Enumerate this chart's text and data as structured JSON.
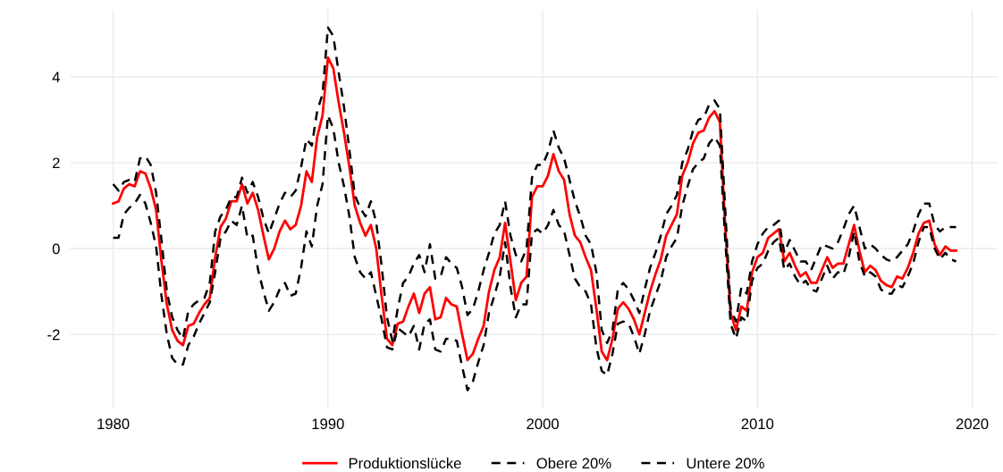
{
  "chart_data": {
    "type": "line",
    "x": [
      1980.0,
      1980.25,
      1980.5,
      1980.75,
      1981.0,
      1981.25,
      1981.5,
      1981.75,
      1982.0,
      1982.25,
      1982.5,
      1982.75,
      1983.0,
      1983.25,
      1983.5,
      1983.75,
      1984.0,
      1984.25,
      1984.5,
      1984.75,
      1985.0,
      1985.25,
      1985.5,
      1985.75,
      1986.0,
      1986.25,
      1986.5,
      1986.75,
      1987.0,
      1987.25,
      1987.5,
      1987.75,
      1988.0,
      1988.25,
      1988.5,
      1988.75,
      1989.0,
      1989.25,
      1989.5,
      1989.75,
      1990.0,
      1990.25,
      1990.5,
      1990.75,
      1991.0,
      1991.25,
      1991.5,
      1991.75,
      1992.0,
      1992.25,
      1992.5,
      1992.75,
      1993.0,
      1993.25,
      1993.5,
      1993.75,
      1994.0,
      1994.25,
      1994.5,
      1994.75,
      1995.0,
      1995.25,
      1995.5,
      1995.75,
      1996.0,
      1996.25,
      1996.5,
      1996.75,
      1997.0,
      1997.25,
      1997.5,
      1997.75,
      1998.0,
      1998.25,
      1998.5,
      1998.75,
      1999.0,
      1999.25,
      1999.5,
      1999.75,
      2000.0,
      2000.25,
      2000.5,
      2000.75,
      2001.0,
      2001.25,
      2001.5,
      2001.75,
      2002.0,
      2002.25,
      2002.5,
      2002.75,
      2003.0,
      2003.25,
      2003.5,
      2003.75,
      2004.0,
      2004.25,
      2004.5,
      2004.75,
      2005.0,
      2005.25,
      2005.5,
      2005.75,
      2006.0,
      2006.25,
      2006.5,
      2006.75,
      2007.0,
      2007.25,
      2007.5,
      2007.75,
      2008.0,
      2008.25,
      2008.5,
      2008.75,
      2009.0,
      2009.25,
      2009.5,
      2009.75,
      2010.0,
      2010.25,
      2010.5,
      2010.75,
      2011.0,
      2011.25,
      2011.5,
      2011.75,
      2012.0,
      2012.25,
      2012.5,
      2012.75,
      2013.0,
      2013.25,
      2013.5,
      2013.75,
      2014.0,
      2014.25,
      2014.5,
      2014.75,
      2015.0,
      2015.25,
      2015.5,
      2015.75,
      2016.0,
      2016.25,
      2016.5,
      2016.75,
      2017.0,
      2017.25,
      2017.5,
      2017.75,
      2018.0,
      2018.25,
      2018.5,
      2018.75,
      2019.0,
      2019.25
    ],
    "series": [
      {
        "name": "Produktionslücke",
        "color": "#ff0000",
        "line_style": "solid",
        "values": [
          1.05,
          1.1,
          1.4,
          1.5,
          1.45,
          1.8,
          1.75,
          1.4,
          0.9,
          -0.3,
          -1.3,
          -1.9,
          -2.15,
          -2.25,
          -1.8,
          -1.75,
          -1.5,
          -1.3,
          -1.15,
          -0.2,
          0.5,
          0.7,
          1.1,
          1.1,
          1.5,
          1.05,
          1.3,
          0.9,
          0.3,
          -0.25,
          0.0,
          0.4,
          0.65,
          0.45,
          0.55,
          1.0,
          1.8,
          1.55,
          2.6,
          3.1,
          4.45,
          4.2,
          3.4,
          2.7,
          1.9,
          1.0,
          0.6,
          0.3,
          0.55,
          0.0,
          -1.1,
          -2.1,
          -2.25,
          -1.75,
          -1.7,
          -1.35,
          -1.05,
          -1.5,
          -1.05,
          -0.9,
          -1.65,
          -1.6,
          -1.15,
          -1.3,
          -1.35,
          -2.0,
          -2.6,
          -2.45,
          -2.1,
          -1.8,
          -1.0,
          -0.5,
          -0.2,
          0.6,
          -0.3,
          -1.2,
          -0.8,
          -0.65,
          1.2,
          1.45,
          1.45,
          1.7,
          2.2,
          1.8,
          1.6,
          0.8,
          0.3,
          0.15,
          -0.2,
          -0.5,
          -1.4,
          -2.4,
          -2.6,
          -2.1,
          -1.4,
          -1.25,
          -1.4,
          -1.65,
          -2.0,
          -1.5,
          -1.0,
          -0.6,
          -0.25,
          0.3,
          0.55,
          0.8,
          1.7,
          2.0,
          2.45,
          2.7,
          2.75,
          3.05,
          3.2,
          2.95,
          0.5,
          -1.5,
          -1.9,
          -1.35,
          -1.45,
          -0.55,
          -0.2,
          -0.1,
          0.25,
          0.35,
          0.45,
          -0.3,
          -0.1,
          -0.4,
          -0.65,
          -0.55,
          -0.8,
          -0.8,
          -0.5,
          -0.2,
          -0.45,
          -0.35,
          -0.35,
          0.1,
          0.55,
          -0.05,
          -0.55,
          -0.4,
          -0.5,
          -0.75,
          -0.85,
          -0.9,
          -0.65,
          -0.7,
          -0.45,
          -0.1,
          0.35,
          0.6,
          0.65,
          0.1,
          -0.15,
          0.05,
          -0.05,
          -0.05
        ]
      },
      {
        "name": "Obere 20%",
        "color": "#000000",
        "line_style": "dashed",
        "values": [
          1.5,
          1.35,
          1.55,
          1.6,
          1.55,
          2.1,
          2.15,
          1.95,
          1.3,
          0.2,
          -1.0,
          -1.6,
          -1.9,
          -2.1,
          -1.45,
          -1.3,
          -1.2,
          -1.15,
          -0.8,
          0.4,
          0.75,
          0.9,
          1.2,
          1.2,
          1.65,
          1.3,
          1.55,
          1.2,
          0.7,
          0.35,
          0.7,
          1.05,
          1.3,
          1.2,
          1.35,
          1.9,
          2.55,
          2.4,
          3.2,
          3.6,
          5.15,
          4.95,
          4.1,
          3.3,
          2.3,
          1.25,
          0.95,
          0.75,
          1.1,
          0.6,
          -0.4,
          -1.6,
          -2.15,
          -1.4,
          -0.8,
          -0.65,
          -0.35,
          -0.15,
          -0.55,
          0.1,
          -0.7,
          -0.65,
          -0.2,
          -0.35,
          -0.45,
          -0.9,
          -1.55,
          -1.4,
          -1.0,
          -0.5,
          -0.1,
          0.35,
          0.55,
          1.1,
          0.3,
          -0.15,
          -0.3,
          0.0,
          1.65,
          1.95,
          1.95,
          2.25,
          2.75,
          2.35,
          2.1,
          1.6,
          1.1,
          0.75,
          0.3,
          0.1,
          -0.55,
          -1.9,
          -2.2,
          -1.9,
          -0.95,
          -0.8,
          -0.95,
          -1.2,
          -1.5,
          -0.95,
          -0.45,
          -0.1,
          0.3,
          0.8,
          1.0,
          1.25,
          2.0,
          2.3,
          2.75,
          3.0,
          3.05,
          3.35,
          3.45,
          3.25,
          0.9,
          -1.4,
          -1.7,
          -0.9,
          -1.05,
          -0.3,
          0.1,
          0.35,
          0.5,
          0.55,
          0.65,
          -0.1,
          0.2,
          -0.05,
          -0.3,
          -0.3,
          -0.5,
          -0.2,
          0.1,
          0.05,
          0.0,
          0.15,
          0.45,
          0.8,
          1.0,
          0.5,
          0.0,
          0.1,
          0.0,
          -0.15,
          -0.25,
          -0.3,
          -0.2,
          -0.05,
          0.1,
          0.4,
          0.8,
          1.05,
          1.05,
          0.55,
          0.4,
          0.5,
          0.5,
          0.5
        ]
      },
      {
        "name": "Untere 20%",
        "color": "#000000",
        "line_style": "dashed",
        "values": [
          0.25,
          0.25,
          0.8,
          0.95,
          1.05,
          1.25,
          1.05,
          0.6,
          0.05,
          -1.1,
          -2.0,
          -2.55,
          -2.7,
          -2.7,
          -2.25,
          -2.05,
          -1.75,
          -1.5,
          -1.25,
          -0.55,
          0.25,
          0.4,
          0.65,
          0.55,
          1.0,
          0.25,
          0.3,
          -0.5,
          -1.0,
          -1.45,
          -1.25,
          -0.95,
          -0.8,
          -1.1,
          -1.05,
          -0.45,
          0.4,
          0.05,
          1.0,
          1.5,
          3.1,
          2.8,
          2.0,
          1.45,
          0.75,
          -0.2,
          -0.55,
          -0.7,
          -0.55,
          -1.1,
          -1.65,
          -2.3,
          -2.35,
          -1.85,
          -1.95,
          -2.05,
          -1.8,
          -2.35,
          -1.75,
          -1.65,
          -2.35,
          -2.4,
          -2.1,
          -2.1,
          -2.15,
          -2.75,
          -3.3,
          -3.1,
          -2.65,
          -2.25,
          -1.5,
          -1.1,
          -0.65,
          0.15,
          -0.9,
          -1.6,
          -1.3,
          -1.3,
          0.35,
          0.45,
          0.35,
          0.55,
          0.9,
          0.55,
          0.4,
          -0.15,
          -0.7,
          -0.9,
          -1.0,
          -1.3,
          -2.3,
          -2.85,
          -2.95,
          -2.45,
          -1.75,
          -1.7,
          -1.75,
          -2.05,
          -2.45,
          -2.0,
          -1.45,
          -1.1,
          -0.75,
          -0.2,
          0.05,
          0.25,
          1.0,
          1.45,
          1.85,
          2.0,
          2.1,
          2.45,
          2.6,
          2.4,
          0.2,
          -1.75,
          -2.1,
          -1.6,
          -1.7,
          -0.75,
          -0.45,
          -0.35,
          -0.05,
          0.15,
          0.25,
          -0.5,
          -0.35,
          -0.65,
          -0.85,
          -0.75,
          -0.95,
          -1.0,
          -0.7,
          -0.4,
          -0.7,
          -0.55,
          -0.6,
          -0.2,
          0.4,
          -0.3,
          -0.65,
          -0.55,
          -0.65,
          -0.95,
          -1.05,
          -1.05,
          -0.85,
          -0.9,
          -0.65,
          -0.35,
          0.15,
          0.5,
          0.5,
          0.0,
          -0.25,
          -0.1,
          -0.25,
          -0.3
        ]
      }
    ],
    "xlim": [
      1978.0,
      2021.2
    ],
    "ylim": [
      -3.72,
      5.57
    ],
    "xticks": [
      1980,
      1990,
      2000,
      2010,
      2020
    ],
    "yticks": [
      -2,
      0,
      2,
      4
    ],
    "grid": true,
    "legend": "bottom",
    "marker": "none"
  }
}
